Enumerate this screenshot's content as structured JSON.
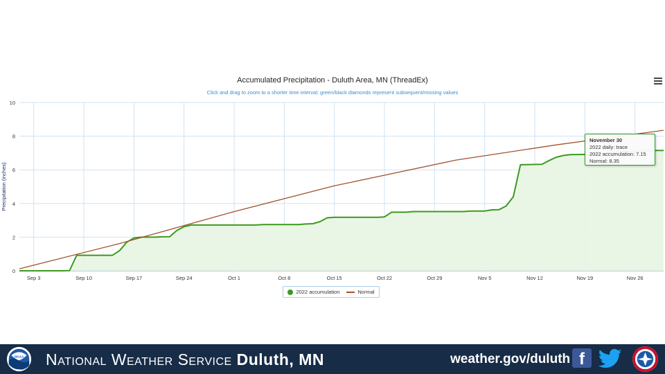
{
  "chart_data": {
    "type": "line",
    "title": "Accumulated Precipitation - Duluth Area, MN (ThreadEx)",
    "subtitle": "Click and drag to zoom to a shorter time interval; green/black diamonds represent subsequent/missing values",
    "ylabel": "Precipitation (inches)",
    "xlabel": "",
    "ylim": [
      0,
      10
    ],
    "y_ticks": [
      0,
      2,
      4,
      6,
      8,
      10
    ],
    "x_range": [
      "2022-09-01",
      "2022-11-30"
    ],
    "x_ticks": [
      {
        "date": "2022-09-03",
        "label": "Sep 3"
      },
      {
        "date": "2022-09-10",
        "label": "Sep 10"
      },
      {
        "date": "2022-09-17",
        "label": "Sep 17"
      },
      {
        "date": "2022-09-24",
        "label": "Sep 24"
      },
      {
        "date": "2022-10-01",
        "label": "Oct 1"
      },
      {
        "date": "2022-10-08",
        "label": "Oct 8"
      },
      {
        "date": "2022-10-15",
        "label": "Oct 15"
      },
      {
        "date": "2022-10-22",
        "label": "Oct 22"
      },
      {
        "date": "2022-10-29",
        "label": "Oct 29"
      },
      {
        "date": "2022-11-05",
        "label": "Nov 5"
      },
      {
        "date": "2022-11-12",
        "label": "Nov 12"
      },
      {
        "date": "2022-11-19",
        "label": "Nov 19"
      },
      {
        "date": "2022-11-26",
        "label": "Nov 26"
      }
    ],
    "grid": true,
    "legend_position": "bottom-center",
    "series": [
      {
        "name": "2022 accumulation",
        "color": "#3a9a1f",
        "area": true,
        "points": [
          [
            "2022-09-01",
            0
          ],
          [
            "2022-09-07",
            0
          ],
          [
            "2022-09-08",
            0.01
          ],
          [
            "2022-09-09",
            0.92
          ],
          [
            "2022-09-10",
            0.92
          ],
          [
            "2022-09-11",
            0.92
          ],
          [
            "2022-09-12",
            0.92
          ],
          [
            "2022-09-13",
            0.92
          ],
          [
            "2022-09-14",
            0.92
          ],
          [
            "2022-09-15",
            1.2
          ],
          [
            "2022-09-16",
            1.7
          ],
          [
            "2022-09-17",
            1.95
          ],
          [
            "2022-09-18",
            2.0
          ],
          [
            "2022-09-19",
            2.0
          ],
          [
            "2022-09-20",
            2.0
          ],
          [
            "2022-09-21",
            2.02
          ],
          [
            "2022-09-22",
            2.03
          ],
          [
            "2022-09-23",
            2.4
          ],
          [
            "2022-09-24",
            2.62
          ],
          [
            "2022-09-25",
            2.72
          ],
          [
            "2022-09-26",
            2.72
          ],
          [
            "2022-09-30",
            2.72
          ],
          [
            "2022-10-03",
            2.72
          ],
          [
            "2022-10-04",
            2.72
          ],
          [
            "2022-10-05",
            2.75
          ],
          [
            "2022-10-10",
            2.75
          ],
          [
            "2022-10-11",
            2.78
          ],
          [
            "2022-10-12",
            2.8
          ],
          [
            "2022-10-13",
            2.92
          ],
          [
            "2022-10-14",
            3.15
          ],
          [
            "2022-10-15",
            3.18
          ],
          [
            "2022-10-21",
            3.18
          ],
          [
            "2022-10-22",
            3.2
          ],
          [
            "2022-10-23",
            3.48
          ],
          [
            "2022-10-25",
            3.48
          ],
          [
            "2022-10-26",
            3.52
          ],
          [
            "2022-11-02",
            3.52
          ],
          [
            "2022-11-03",
            3.55
          ],
          [
            "2022-11-05",
            3.55
          ],
          [
            "2022-11-06",
            3.62
          ],
          [
            "2022-11-07",
            3.63
          ],
          [
            "2022-11-08",
            3.85
          ],
          [
            "2022-11-09",
            4.4
          ],
          [
            "2022-11-10",
            6.3
          ],
          [
            "2022-11-13",
            6.33
          ],
          [
            "2022-11-14",
            6.55
          ],
          [
            "2022-11-15",
            6.75
          ],
          [
            "2022-11-16",
            6.85
          ],
          [
            "2022-11-17",
            6.9
          ],
          [
            "2022-11-21",
            6.92
          ],
          [
            "2022-11-22",
            7.0
          ],
          [
            "2022-11-23",
            7.05
          ],
          [
            "2022-11-29",
            7.15
          ],
          [
            "2022-11-30",
            7.15
          ]
        ]
      },
      {
        "name": "Normal",
        "color": "#a0522d",
        "area": false,
        "points": [
          [
            "2022-09-01",
            0.12
          ],
          [
            "2022-09-15",
            1.62
          ],
          [
            "2022-10-01",
            3.52
          ],
          [
            "2022-10-15",
            5.05
          ],
          [
            "2022-11-01",
            6.58
          ],
          [
            "2022-11-15",
            7.48
          ],
          [
            "2022-11-30",
            8.35
          ]
        ]
      }
    ],
    "tooltip": {
      "title": "November 30",
      "lines": [
        "2022 daily: trace",
        "2022 accumulation: 7.15",
        "Normal: 8.35"
      ]
    }
  },
  "footer": {
    "org_prefix": "National Weather Service",
    "org_location": "Duluth, MN",
    "url": "weather.gov/duluth",
    "noaa_icon": "noaa-logo",
    "facebook_icon": "facebook-icon",
    "facebook_glyph": "f",
    "twitter_icon": "twitter-icon",
    "nws_icon": "nws-logo",
    "noaa_text": "NOAA"
  }
}
